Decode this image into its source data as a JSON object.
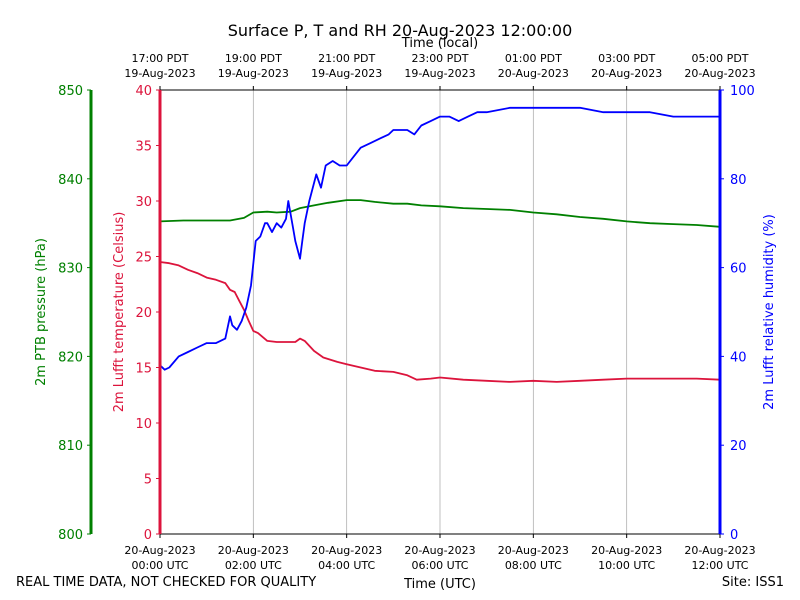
{
  "title": "Surface P, T and RH 20-Aug-2023 12:00:00",
  "footer": {
    "quality_note": "REAL TIME DATA, NOT CHECKED FOR QUALITY",
    "site": "Site: ISS1"
  },
  "colors": {
    "pressure": "#008000",
    "temperature": "#dc143c",
    "humidity": "#0000ff",
    "grid": "#b0b0b0"
  },
  "chart_data": {
    "type": "line",
    "title": "Surface P, T and RH 20-Aug-2023 12:00:00",
    "xlabel_bottom": "Time (UTC)",
    "xlabel_top": "Time (local)",
    "x_unit": "hours since 20-Aug-2023 00:00 UTC",
    "xlim": [
      0,
      12
    ],
    "x_ticks": [
      0,
      2,
      4,
      6,
      8,
      10,
      12
    ],
    "x_tick_labels_utc": [
      [
        "20-Aug-2023",
        "00:00 UTC"
      ],
      [
        "20-Aug-2023",
        "02:00 UTC"
      ],
      [
        "20-Aug-2023",
        "04:00 UTC"
      ],
      [
        "20-Aug-2023",
        "06:00 UTC"
      ],
      [
        "20-Aug-2023",
        "08:00 UTC"
      ],
      [
        "20-Aug-2023",
        "10:00 UTC"
      ],
      [
        "20-Aug-2023",
        "12:00 UTC"
      ]
    ],
    "x_tick_labels_local": [
      [
        "17:00 PDT",
        "19-Aug-2023"
      ],
      [
        "19:00 PDT",
        "19-Aug-2023"
      ],
      [
        "21:00 PDT",
        "19-Aug-2023"
      ],
      [
        "23:00 PDT",
        "19-Aug-2023"
      ],
      [
        "01:00 PDT",
        "20-Aug-2023"
      ],
      [
        "03:00 PDT",
        "20-Aug-2023"
      ],
      [
        "05:00 PDT",
        "20-Aug-2023"
      ]
    ],
    "grid": "vertical",
    "axes": {
      "pressure": {
        "label": "2m PTB pressure (hPa)",
        "ylim": [
          800,
          850
        ],
        "ticks": [
          800,
          810,
          820,
          830,
          840,
          850
        ],
        "side": "left-outer"
      },
      "temperature": {
        "label": "2m Lufft temperature (Celsius)",
        "ylim": [
          0,
          40
        ],
        "ticks": [
          0,
          5,
          10,
          15,
          20,
          25,
          30,
          35,
          40
        ],
        "side": "left"
      },
      "humidity": {
        "label": "2m Lufft relative humidity (%)",
        "ylim": [
          0,
          100
        ],
        "ticks": [
          0,
          20,
          40,
          60,
          80,
          100
        ],
        "side": "right"
      }
    },
    "series": [
      {
        "key": "pressure",
        "axis": "pressure",
        "x": [
          0,
          0.5,
          1,
          1.5,
          1.8,
          2,
          2.3,
          2.5,
          2.8,
          3,
          3.3,
          3.6,
          4,
          4.3,
          4.6,
          5,
          5.3,
          5.6,
          6,
          6.5,
          7,
          7.5,
          8,
          8.5,
          9,
          9.5,
          10,
          10.5,
          11,
          11.5,
          12
        ],
        "y": [
          835.2,
          835.3,
          835.3,
          835.3,
          835.6,
          836.2,
          836.3,
          836.2,
          836.3,
          836.7,
          837.0,
          837.3,
          837.6,
          837.6,
          837.4,
          837.2,
          837.2,
          837.0,
          836.9,
          836.7,
          836.6,
          836.5,
          836.2,
          836.0,
          835.7,
          835.5,
          835.2,
          835.0,
          834.9,
          834.8,
          834.6
        ]
      },
      {
        "key": "temperature",
        "axis": "temperature",
        "x": [
          0,
          0.2,
          0.4,
          0.6,
          0.8,
          1,
          1.2,
          1.4,
          1.5,
          1.6,
          1.7,
          1.8,
          1.9,
          2,
          2.1,
          2.3,
          2.5,
          2.7,
          2.9,
          3,
          3.1,
          3.3,
          3.5,
          3.8,
          4,
          4.3,
          4.6,
          5,
          5.3,
          5.5,
          5.8,
          6,
          6.5,
          7,
          7.5,
          8,
          8.5,
          9,
          9.5,
          10,
          10.5,
          11,
          11.5,
          12
        ],
        "y": [
          24.5,
          24.4,
          24.2,
          23.8,
          23.5,
          23.1,
          22.9,
          22.6,
          22.0,
          21.8,
          21.0,
          20.2,
          19.2,
          18.3,
          18.1,
          17.4,
          17.3,
          17.3,
          17.3,
          17.6,
          17.4,
          16.5,
          15.9,
          15.5,
          15.3,
          15.0,
          14.7,
          14.6,
          14.3,
          13.9,
          14.0,
          14.1,
          13.9,
          13.8,
          13.7,
          13.8,
          13.7,
          13.8,
          13.9,
          14.0,
          14.0,
          14.0,
          14.0,
          13.9
        ]
      },
      {
        "key": "humidity",
        "axis": "humidity",
        "x": [
          0,
          0.1,
          0.2,
          0.4,
          0.6,
          0.8,
          1,
          1.2,
          1.4,
          1.5,
          1.55,
          1.65,
          1.75,
          1.85,
          1.95,
          2.05,
          2.15,
          2.25,
          2.3,
          2.4,
          2.5,
          2.6,
          2.7,
          2.75,
          2.85,
          2.9,
          3,
          3.05,
          3.1,
          3.2,
          3.35,
          3.45,
          3.55,
          3.7,
          3.85,
          4,
          4.15,
          4.3,
          4.5,
          4.7,
          4.9,
          5,
          5.15,
          5.3,
          5.45,
          5.6,
          5.8,
          6,
          6.2,
          6.4,
          6.6,
          6.8,
          7,
          7.5,
          8,
          8.5,
          9,
          9.5,
          10,
          10.5,
          11,
          11.5,
          12
        ],
        "y": [
          38,
          37,
          37.5,
          40,
          41,
          42,
          43,
          43,
          44,
          49,
          47,
          46,
          48,
          51,
          56,
          66,
          67,
          70,
          70,
          68,
          70,
          69,
          71,
          75,
          69,
          66,
          62,
          66,
          70,
          75,
          81,
          78,
          83,
          84,
          83,
          83,
          85,
          87,
          88,
          89,
          90,
          91,
          91,
          91,
          90,
          92,
          93,
          94,
          94,
          93,
          94,
          95,
          95,
          96,
          96,
          96,
          96,
          95,
          95,
          95,
          94,
          94,
          94
        ]
      }
    ]
  }
}
